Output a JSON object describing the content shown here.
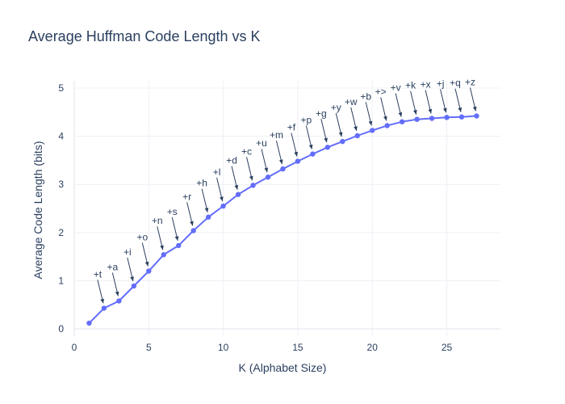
{
  "chart_data": {
    "type": "line",
    "title": "Average Huffman Code Length vs K",
    "xlabel": "K (Alphabet Size)",
    "ylabel": "Average Code Length (bits)",
    "xlim": [
      0,
      28.6
    ],
    "ylim": [
      -0.15,
      5.15
    ],
    "xticks": [
      0,
      5,
      10,
      15,
      20,
      25
    ],
    "yticks": [
      0,
      1,
      2,
      3,
      4,
      5
    ],
    "grid": true,
    "line_color": "#636efa",
    "series": [
      {
        "x": [
          1,
          2,
          3,
          4,
          5,
          6,
          7,
          8,
          9,
          10,
          11,
          12,
          13,
          14,
          15,
          16,
          17,
          18,
          19,
          20,
          21,
          22,
          23,
          24,
          25,
          26,
          27
        ],
        "y": [
          0.12,
          0.43,
          0.58,
          0.89,
          1.2,
          1.54,
          1.73,
          2.04,
          2.32,
          2.55,
          2.79,
          2.98,
          3.15,
          3.32,
          3.48,
          3.63,
          3.77,
          3.89,
          4.01,
          4.12,
          4.22,
          4.3,
          4.35,
          4.37,
          4.39,
          4.4,
          4.42
        ]
      }
    ],
    "annotations": [
      {
        "x": 2,
        "text": "+t"
      },
      {
        "x": 3,
        "text": "+a"
      },
      {
        "x": 4,
        "text": "+i"
      },
      {
        "x": 5,
        "text": "+o"
      },
      {
        "x": 6,
        "text": "+n"
      },
      {
        "x": 7,
        "text": "+s"
      },
      {
        "x": 8,
        "text": "+r"
      },
      {
        "x": 9,
        "text": "+h"
      },
      {
        "x": 10,
        "text": "+l"
      },
      {
        "x": 11,
        "text": "+d"
      },
      {
        "x": 12,
        "text": "+c"
      },
      {
        "x": 13,
        "text": "+u"
      },
      {
        "x": 14,
        "text": "+m"
      },
      {
        "x": 15,
        "text": "+f"
      },
      {
        "x": 16,
        "text": "+p"
      },
      {
        "x": 17,
        "text": "+g"
      },
      {
        "x": 18,
        "text": "+y"
      },
      {
        "x": 19,
        "text": "+w"
      },
      {
        "x": 20,
        "text": "+b"
      },
      {
        "x": 21,
        "text": "+>"
      },
      {
        "x": 22,
        "text": "+v"
      },
      {
        "x": 23,
        "text": "+k"
      },
      {
        "x": 24,
        "text": "+x"
      },
      {
        "x": 25,
        "text": "+j"
      },
      {
        "x": 26,
        "text": "+q"
      },
      {
        "x": 27,
        "text": "+z"
      }
    ]
  }
}
